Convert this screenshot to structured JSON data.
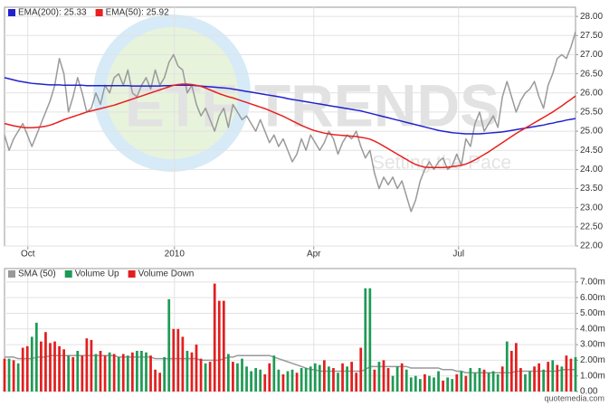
{
  "chart_data": [
    {
      "type": "line",
      "xlim": [
        0,
        125
      ],
      "xticks": [
        {
          "value": 5.1,
          "label": "Oct"
        },
        {
          "value": 37.2,
          "label": "2010"
        },
        {
          "value": 67.7,
          "label": "Apr"
        },
        {
          "value": 99.4,
          "label": "Jul"
        }
      ],
      "ylim": [
        22,
        28.24
      ],
      "yticks": [
        {
          "value": 22,
          "label": "22.00"
        },
        {
          "value": 22.5,
          "label": "22.50"
        },
        {
          "value": 23,
          "label": "23.00"
        },
        {
          "value": 23.5,
          "label": "23.50"
        },
        {
          "value": 24,
          "label": "24.00"
        },
        {
          "value": 24.5,
          "label": "24.50"
        },
        {
          "value": 25,
          "label": "25.00"
        },
        {
          "value": 25.5,
          "label": "25.50"
        },
        {
          "value": 26,
          "label": "26.00"
        },
        {
          "value": 26.5,
          "label": "26.50"
        },
        {
          "value": 27,
          "label": "27.00"
        },
        {
          "value": 27.5,
          "label": "27.50"
        },
        {
          "value": 28,
          "label": "28.00"
        }
      ],
      "grid": true,
      "series": [
        {
          "color": "#9a9a9a",
          "values": [
            24.9,
            24.5,
            24.8,
            25.0,
            25.2,
            24.9,
            24.6,
            24.9,
            25.2,
            25.5,
            25.8,
            26.2,
            26.9,
            26.5,
            25.5,
            25.9,
            26.4,
            26.0,
            25.5,
            25.6,
            26.0,
            25.7,
            26.2,
            26.0,
            26.4,
            26.5,
            26.2,
            26.6,
            26.0,
            25.9,
            26.2,
            26.4,
            26.1,
            26.6,
            26.2,
            26.4,
            26.8,
            27.0,
            26.7,
            26.6,
            26.0,
            26.2,
            25.7,
            25.4,
            25.6,
            25.3,
            25.0,
            25.4,
            25.6,
            25.1,
            25.7,
            25.5,
            25.3,
            25.4,
            25.2,
            25.0,
            25.3,
            25.0,
            24.7,
            24.9,
            24.6,
            24.8,
            24.5,
            24.2,
            24.4,
            24.8,
            24.5,
            24.9,
            24.7,
            24.5,
            24.7,
            25.0,
            24.8,
            24.4,
            24.7,
            24.9,
            24.8,
            25.0,
            24.6,
            24.3,
            24.5,
            23.9,
            23.5,
            23.8,
            23.6,
            23.8,
            23.5,
            23.7,
            23.3,
            22.9,
            23.2,
            23.7,
            24.0,
            24.2,
            24.0,
            24.2,
            24.3,
            24.0,
            24.1,
            24.4,
            24.1,
            24.8,
            24.6,
            25.2,
            25.5,
            25.0,
            25.2,
            25.4,
            25.1,
            25.9,
            26.3,
            25.9,
            25.5,
            25.8,
            26.0,
            26.1,
            26.3,
            25.9,
            25.6,
            26.2,
            26.5,
            26.9,
            27.0,
            26.9,
            27.2,
            27.6
          ]
        },
        {
          "name": "EMA(200): 25.33",
          "color": "#2222cc",
          "values": [
            26.4,
            26.37,
            26.34,
            26.31,
            26.29,
            26.27,
            26.25,
            26.24,
            26.23,
            26.22,
            26.21,
            26.21,
            26.21,
            26.2,
            26.2,
            26.2,
            26.2,
            26.2,
            26.19,
            26.19,
            26.19,
            26.19,
            26.19,
            26.19,
            26.19,
            26.19,
            26.19,
            26.19,
            26.18,
            26.18,
            26.18,
            26.18,
            26.18,
            26.18,
            26.18,
            26.19,
            26.19,
            26.2,
            26.2,
            26.2,
            26.2,
            26.2,
            26.19,
            26.18,
            26.17,
            26.16,
            26.15,
            26.14,
            26.13,
            26.12,
            26.1,
            26.08,
            26.06,
            26.04,
            26.02,
            26.0,
            25.98,
            25.96,
            25.94,
            25.92,
            25.9,
            25.88,
            25.85,
            25.83,
            25.81,
            25.79,
            25.77,
            25.75,
            25.73,
            25.71,
            25.69,
            25.67,
            25.65,
            25.63,
            25.61,
            25.59,
            25.57,
            25.55,
            25.53,
            25.5,
            25.47,
            25.44,
            25.41,
            25.38,
            25.35,
            25.32,
            25.29,
            25.26,
            25.23,
            25.2,
            25.17,
            25.14,
            25.11,
            25.08,
            25.05,
            25.02,
            25.0,
            24.98,
            24.96,
            24.95,
            24.94,
            24.93,
            24.93,
            24.93,
            24.93,
            24.94,
            24.95,
            24.96,
            24.97,
            24.98,
            25.0,
            25.02,
            25.04,
            25.06,
            25.08,
            25.1,
            25.12,
            25.14,
            25.16,
            25.19,
            25.21,
            25.24,
            25.26,
            25.29,
            25.31,
            25.33
          ]
        },
        {
          "name": "EMA(50): 25.92",
          "color": "#e82020",
          "values": [
            25.2,
            25.17,
            25.14,
            25.12,
            25.1,
            25.09,
            25.09,
            25.1,
            25.11,
            25.13,
            25.16,
            25.2,
            25.25,
            25.3,
            25.34,
            25.38,
            25.42,
            25.46,
            25.5,
            25.53,
            25.56,
            25.59,
            25.62,
            25.65,
            25.68,
            25.72,
            25.76,
            25.8,
            25.84,
            25.88,
            25.92,
            25.96,
            26.0,
            26.04,
            26.08,
            26.12,
            26.16,
            26.2,
            26.22,
            26.23,
            26.23,
            26.22,
            26.2,
            26.17,
            26.13,
            26.08,
            26.03,
            25.98,
            25.94,
            25.9,
            25.87,
            25.83,
            25.79,
            25.75,
            25.71,
            25.67,
            25.63,
            25.59,
            25.54,
            25.49,
            25.44,
            25.39,
            25.33,
            25.27,
            25.21,
            25.15,
            25.1,
            25.05,
            25.01,
            24.98,
            24.95,
            24.93,
            24.91,
            24.9,
            24.89,
            24.88,
            24.87,
            24.86,
            24.84,
            24.82,
            24.79,
            24.74,
            24.68,
            24.61,
            24.54,
            24.47,
            24.4,
            24.33,
            24.26,
            24.19,
            24.13,
            24.09,
            24.06,
            24.05,
            24.05,
            24.05,
            24.05,
            24.06,
            24.07,
            24.09,
            24.11,
            24.14,
            24.19,
            24.25,
            24.32,
            24.39,
            24.46,
            24.54,
            24.62,
            24.7,
            24.78,
            24.86,
            24.94,
            25.01,
            25.08,
            25.15,
            25.22,
            25.29,
            25.36,
            25.43,
            25.5,
            25.58,
            25.66,
            25.75,
            25.83,
            25.92
          ]
        }
      ]
    },
    {
      "type": "bar",
      "xlim": [
        0,
        125
      ],
      "ylim": [
        0,
        7.86
      ],
      "yticks": [
        {
          "value": 0,
          "label": "0.00"
        },
        {
          "value": 1,
          "label": "1.00m"
        },
        {
          "value": 2,
          "label": "2.00m"
        },
        {
          "value": 3,
          "label": "3.00m"
        },
        {
          "value": 4,
          "label": "4.00m"
        },
        {
          "value": 5,
          "label": "5.00m"
        },
        {
          "value": 6,
          "label": "6.00m"
        },
        {
          "value": 7,
          "label": "7.00m"
        }
      ],
      "grid": true,
      "series": [
        {
          "name": "SMA (50)",
          "type": "line",
          "color": "#999999",
          "values": [
            2.2,
            2.2,
            2.2,
            2.1,
            2.1,
            2.1,
            2.1,
            2.2,
            2.2,
            2.2,
            2.3,
            2.3,
            2.3,
            2.3,
            2.3,
            2.3,
            2.3,
            2.3,
            2.3,
            2.3,
            2.3,
            2.3,
            2.3,
            2.3,
            2.3,
            2.2,
            2.2,
            2.2,
            2.2,
            2.2,
            2.2,
            2.2,
            2.2,
            2.1,
            2.1,
            2.1,
            2.1,
            2.1,
            2.1,
            2.1,
            2.1,
            2.1,
            2.1,
            2.0,
            2.0,
            2.0,
            2.0,
            2.0,
            2.1,
            2.2,
            2.2,
            2.3,
            2.3,
            2.3,
            2.3,
            2.3,
            2.3,
            2.3,
            2.3,
            2.2,
            2.1,
            2.0,
            1.9,
            1.8,
            1.7,
            1.6,
            1.5,
            1.4,
            1.4,
            1.3,
            1.3,
            1.3,
            1.3,
            1.3,
            1.3,
            1.3,
            1.3,
            1.3,
            1.3,
            1.4,
            1.6,
            1.6,
            1.6,
            1.6,
            1.6,
            1.6,
            1.6,
            1.6,
            1.6,
            1.5,
            1.5,
            1.5,
            1.5,
            1.5,
            1.5,
            1.5,
            1.4,
            1.4,
            1.4,
            1.3,
            1.3,
            1.2,
            1.2,
            1.2,
            1.2,
            1.2,
            1.2,
            1.2,
            1.2,
            1.2,
            1.2,
            1.2,
            1.3,
            1.3,
            1.3,
            1.3,
            1.3,
            1.3,
            1.3,
            1.3,
            1.3,
            1.3,
            1.4,
            1.4,
            1.4,
            1.4
          ]
        },
        {
          "name": "Volume Up",
          "type": "bar",
          "color": "#1f9a55",
          "values": [
            null,
            2.1,
            null,
            1.8,
            null,
            null,
            3.5,
            4.4,
            null,
            null,
            null,
            null,
            null,
            null,
            2.3,
            null,
            2.6,
            null,
            null,
            null,
            2.4,
            null,
            null,
            2.5,
            null,
            2.2,
            null,
            2.3,
            null,
            2.6,
            2.6,
            2.5,
            null,
            null,
            null,
            2.2,
            5.9,
            null,
            null,
            null,
            2.6,
            null,
            null,
            null,
            1.8,
            null,
            null,
            null,
            null,
            2.4,
            null,
            1.8,
            2.1,
            1.6,
            1.3,
            1.5,
            1.4,
            null,
            null,
            2.3,
            1.4,
            null,
            1.3,
            1.4,
            null,
            1.5,
            1.5,
            1.6,
            1.8,
            1.7,
            null,
            1.6,
            null,
            1.2,
            null,
            1.6,
            null,
            null,
            null,
            6.6,
            6.6,
            null,
            1.9,
            null,
            null,
            1.0,
            1.6,
            null,
            1.4,
            0.9,
            1.0,
            0.8,
            null,
            1.0,
            0.9,
            1.3,
            null,
            0.9,
            0.8,
            null,
            1.3,
            null,
            1.5,
            1.2,
            1.5,
            null,
            1.2,
            1.3,
            1.1,
            null,
            3.2,
            null,
            null,
            null,
            1.1,
            1.3,
            null,
            null,
            1.4,
            null,
            2.0,
            null,
            1.6,
            null,
            null,
            2.2
          ]
        },
        {
          "name": "Volume Down",
          "type": "bar",
          "color": "#e21f1f",
          "values": [
            2.1,
            null,
            2.0,
            null,
            2.8,
            2.9,
            null,
            null,
            3.2,
            3.8,
            3.1,
            3.2,
            2.9,
            2.7,
            null,
            2.2,
            null,
            2.3,
            3.4,
            3.3,
            null,
            2.6,
            2.3,
            null,
            2.4,
            null,
            2.4,
            null,
            2.5,
            null,
            null,
            null,
            2.3,
            1.4,
            1.2,
            null,
            null,
            4.0,
            4.0,
            3.5,
            null,
            2.5,
            3.0,
            2.1,
            null,
            1.9,
            6.9,
            5.8,
            5.8,
            null,
            1.9,
            null,
            null,
            null,
            null,
            null,
            null,
            1.1,
            1.8,
            null,
            null,
            1.1,
            null,
            null,
            1.2,
            null,
            null,
            null,
            null,
            null,
            2.0,
            null,
            1.5,
            null,
            1.8,
            null,
            1.9,
            1.2,
            2.8,
            null,
            null,
            1.4,
            null,
            2.0,
            1.5,
            null,
            null,
            1.8,
            null,
            null,
            null,
            null,
            1.1,
            null,
            null,
            null,
            0.7,
            null,
            null,
            1.1,
            null,
            1.0,
            null,
            null,
            null,
            1.4,
            null,
            null,
            null,
            1.6,
            null,
            2.6,
            3.1,
            1.5,
            null,
            null,
            1.6,
            1.8,
            null,
            1.9,
            null,
            1.7,
            null,
            2.3,
            2.1,
            null
          ]
        }
      ]
    }
  ],
  "watermark": {
    "title": "ETF TRENDS",
    "tagline": "Setting the Pace"
  },
  "footer": "quotemedia.com"
}
